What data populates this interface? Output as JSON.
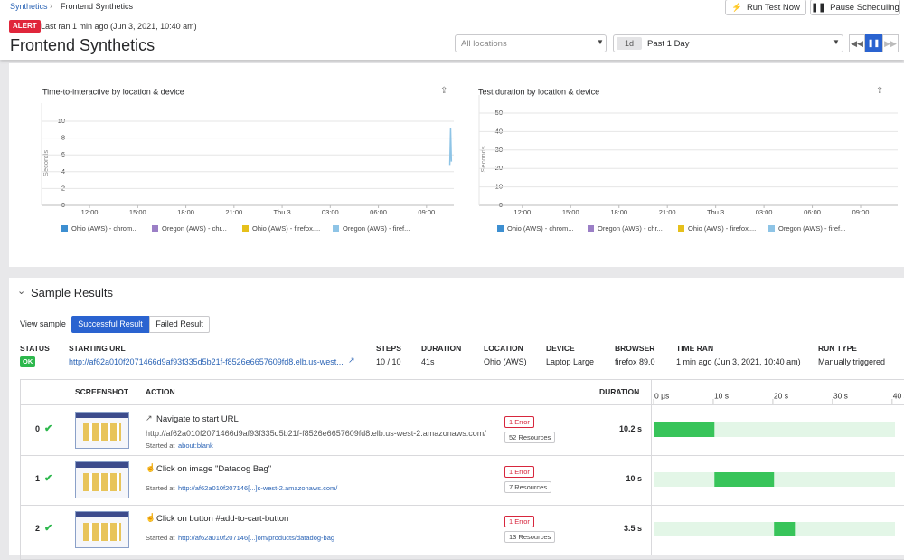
{
  "breadcrumb": [
    "Synthetics",
    "Frontend Synthetics"
  ],
  "buttons": [
    "Run Test Now",
    "Pause Scheduling"
  ],
  "status_badge": "ALERT",
  "last_ran": "Last ran 1 min ago (Jun 3, 2021, 10:40 am)",
  "title": "Frontend Synthetics",
  "location_filter": "All locations",
  "time_range": {
    "short": "1d",
    "label": "Past 1 Day"
  },
  "chart_data": [
    {
      "type": "line",
      "title": "Time-to-interactive by location & device",
      "y_label": "Seconds",
      "xlim": [
        10.7,
        34.7
      ],
      "xticks": [
        {
          "value": 12,
          "label": "12:00"
        },
        {
          "value": 15,
          "label": "15:00"
        },
        {
          "value": 18,
          "label": "18:00"
        },
        {
          "value": 21,
          "label": "21:00"
        },
        {
          "value": 24,
          "label": "Thu 3"
        },
        {
          "value": 27,
          "label": "03:00"
        },
        {
          "value": 30,
          "label": "06:00"
        },
        {
          "value": 33,
          "label": "09:00"
        }
      ],
      "ylim": [
        0,
        10
      ],
      "yticks": [
        0,
        2,
        4,
        6,
        8,
        10
      ],
      "grid": true,
      "series": [
        {
          "name": "Ohio (AWS) - chrom...",
          "color": "#3d8fd1",
          "x": [],
          "values": []
        },
        {
          "name": "Oregon (AWS) - chr...",
          "color": "#9b7fc6",
          "x": [],
          "values": []
        },
        {
          "name": "Ohio (AWS) - firefox....",
          "color": "#e6c01b",
          "x": [],
          "values": []
        },
        {
          "name": "Oregon (AWS) - firef...",
          "color": "#8ec4e6",
          "x": [
            34.45,
            34.5,
            34.55
          ],
          "values": [
            4.8,
            9.2,
            5.2
          ]
        }
      ]
    },
    {
      "type": "line",
      "title": "Test duration by location & device",
      "y_label": "Seconds",
      "xlim": [
        11,
        35.3
      ],
      "xticks": [
        {
          "value": 12,
          "label": "12:00"
        },
        {
          "value": 15,
          "label": "15:00"
        },
        {
          "value": 18,
          "label": "18:00"
        },
        {
          "value": 21,
          "label": "21:00"
        },
        {
          "value": 24,
          "label": "Thu 3"
        },
        {
          "value": 27,
          "label": "03:00"
        },
        {
          "value": 30,
          "label": "06:00"
        },
        {
          "value": 33,
          "label": "09:00"
        }
      ],
      "ylim": [
        0,
        50
      ],
      "yticks": [
        0,
        10,
        20,
        30,
        40,
        50
      ],
      "grid": true,
      "series": [
        {
          "name": "Ohio (AWS) - chrom...",
          "color": "#3d8fd1",
          "x": [],
          "values": []
        },
        {
          "name": "Oregon (AWS) - chr...",
          "color": "#9b7fc6",
          "x": [],
          "values": []
        },
        {
          "name": "Ohio (AWS) - firefox....",
          "color": "#e6c01b",
          "x": [],
          "values": []
        },
        {
          "name": "Oregon (AWS) - firef...",
          "color": "#8ec4e6",
          "x": [],
          "values": []
        }
      ]
    }
  ],
  "sample_results": {
    "title": "Sample Results",
    "view_sample": "View sample",
    "tabs": [
      "Successful Result",
      "Failed Result"
    ],
    "summary": {
      "headers": [
        "STATUS",
        "STARTING URL",
        "STEPS",
        "DURATION",
        "LOCATION",
        "DEVICE",
        "BROWSER",
        "TIME RAN",
        "RUN TYPE"
      ],
      "values": [
        "OK",
        "http://af62a010f2071466d9af93f335d5b21f-f8526e6657609fd8.elb.us-west...",
        "10 / 10",
        "41s",
        "Ohio (AWS)",
        "Laptop Large",
        "firefox 89.0",
        "1 min ago (Jun 3, 2021, 10:40 am)",
        "Manually triggered"
      ]
    },
    "steps_table": {
      "headers": [
        "SCREENSHOT",
        "ACTION",
        "DURATION"
      ],
      "timeline": {
        "xlim": [
          0,
          42
        ],
        "xticks": [
          {
            "value": 0,
            "label": "0 µs"
          },
          {
            "value": 10,
            "label": "10 s"
          },
          {
            "value": 20,
            "label": "20 s"
          },
          {
            "value": 30,
            "label": "30 s"
          },
          {
            "value": 40,
            "label": "40 s"
          }
        ]
      },
      "durations": [
        10.2,
        10,
        3.5
      ],
      "duration_labels": [
        "10.2 s",
        "10 s",
        "3.5 s"
      ],
      "rows": [
        {
          "index": 0,
          "action": "Navigate to start URL",
          "url": "http://af62a010f2071466d9af93f335d5b21f-f8526e6657609fd8.elb.us-west-2.amazonaws.com/",
          "started_label": "Started at",
          "started_link": "about:blank",
          "error": "1 Error",
          "resources": "52 Resources"
        },
        {
          "index": 1,
          "action": "Click on image \"Datadog Bag\"",
          "started_label": "Started at",
          "started_link": "http://af62a010f207146[...]s-west-2.amazonaws.com/",
          "error": "1 Error",
          "resources": "7 Resources"
        },
        {
          "index": 2,
          "action": "Click on button #add-to-cart-button",
          "started_label": "Started at",
          "started_link": "http://af62a010f207146[...]om/products/datadog-bag",
          "error": "1 Error",
          "resources": "13 Resources"
        }
      ]
    }
  }
}
